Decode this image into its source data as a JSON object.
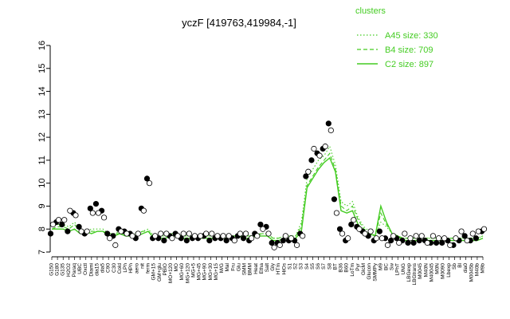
{
  "chart_data": {
    "type": "line",
    "title": "yczF [419763,419984,-1]",
    "ylim": [
      7,
      16
    ],
    "yticks": [
      7,
      8,
      9,
      10,
      11,
      12,
      13,
      14,
      15,
      16
    ],
    "x_labels": [
      "G150",
      "G180",
      "G135",
      "H2O2",
      "Paraq",
      "UBC",
      "Oxctl",
      "Diami",
      "dia15",
      "dia5",
      "C90",
      "C30",
      "Cold",
      "LPh",
      "HPh",
      "aero",
      "nit",
      "ferm",
      "GM+15",
      "GM+glu",
      "PBIO",
      "MO+120",
      "MO",
      "MG+60",
      "MG+120",
      "MG+5",
      "MG+45",
      "MG+90",
      "MG+30",
      "MG+15",
      "M/G",
      "Mal",
      "Fru",
      "Glu",
      "SMM",
      "BMM",
      "Heat",
      "Etha",
      "Salt",
      "Gly",
      "HTm",
      "HiOs",
      "S1",
      "S2",
      "S3",
      "S4",
      "S5",
      "S6",
      "S7",
      "S8",
      "BT",
      "B36",
      "B60",
      "LoTm",
      "Pyr",
      "GlcM",
      "Glucon",
      "SMMPy",
      "M9",
      "BC",
      "Sw",
      "LPhT",
      "UNG",
      "LBGexp",
      "LBGtrans",
      "M0045",
      "M40N",
      "M40045",
      "M0N",
      "M0090",
      "Lbexp",
      "Sb",
      "Bl",
      "dia0",
      "M0045b",
      "M40b",
      "M9b"
    ],
    "series": [
      {
        "name": "A45 size: 330",
        "style": "dotted",
        "values": [
          8.1,
          8.2,
          8.2,
          8.1,
          8.3,
          8.0,
          7.9,
          8.0,
          8.0,
          8.0,
          7.8,
          7.8,
          7.9,
          7.8,
          7.8,
          7.8,
          7.9,
          8.0,
          7.7,
          7.7,
          7.7,
          7.8,
          7.8,
          7.7,
          7.7,
          7.7,
          7.7,
          7.7,
          7.7,
          7.7,
          7.7,
          7.7,
          7.7,
          7.8,
          7.7,
          7.7,
          7.8,
          7.8,
          7.8,
          7.6,
          7.6,
          7.7,
          7.7,
          7.7,
          8.3,
          10.2,
          10.6,
          11.0,
          11.2,
          11.6,
          10.8,
          9.2,
          9.0,
          9.2,
          8.5,
          8.1,
          7.9,
          7.7,
          8.3,
          8.1,
          7.8,
          7.7,
          7.6,
          7.6,
          7.6,
          7.6,
          7.6,
          7.6,
          7.6,
          7.6,
          7.6,
          7.6,
          7.6,
          7.6,
          7.6,
          7.6,
          7.7
        ]
      },
      {
        "name": "B4 size: 709",
        "style": "dashed",
        "values": [
          8.0,
          8.1,
          8.1,
          8.0,
          8.2,
          7.9,
          7.9,
          7.9,
          7.9,
          7.9,
          7.8,
          7.8,
          7.8,
          7.8,
          7.8,
          7.8,
          7.9,
          7.9,
          7.7,
          7.7,
          7.7,
          7.8,
          7.8,
          7.7,
          7.7,
          7.7,
          7.7,
          7.7,
          7.7,
          7.7,
          7.7,
          7.7,
          7.7,
          7.7,
          7.7,
          7.7,
          7.7,
          7.8,
          7.8,
          7.6,
          7.6,
          7.7,
          7.7,
          7.7,
          8.1,
          9.9,
          10.3,
          10.7,
          11.0,
          11.3,
          10.6,
          9.0,
          8.8,
          9.0,
          8.4,
          8.0,
          7.9,
          7.7,
          8.7,
          8.2,
          7.8,
          7.7,
          7.6,
          7.6,
          7.6,
          7.6,
          7.6,
          7.6,
          7.6,
          7.6,
          7.6,
          7.6,
          7.6,
          7.6,
          7.6,
          7.6,
          7.7
        ]
      },
      {
        "name": "C2 size: 897",
        "style": "solid",
        "values": [
          8.0,
          8.0,
          8.0,
          7.9,
          8.0,
          7.8,
          7.9,
          7.8,
          7.9,
          7.9,
          7.7,
          7.7,
          7.8,
          7.7,
          7.7,
          7.7,
          7.8,
          7.9,
          7.6,
          7.6,
          7.6,
          7.7,
          7.7,
          7.6,
          7.6,
          7.6,
          7.6,
          7.6,
          7.6,
          7.6,
          7.6,
          7.6,
          7.7,
          7.7,
          7.6,
          7.6,
          7.7,
          7.7,
          7.7,
          7.5,
          7.5,
          7.6,
          7.6,
          7.6,
          7.9,
          9.8,
          10.2,
          10.6,
          10.9,
          11.1,
          10.5,
          8.8,
          8.7,
          8.8,
          8.2,
          7.9,
          7.8,
          7.7,
          9.0,
          8.3,
          7.8,
          7.7,
          7.5,
          7.5,
          7.5,
          7.5,
          7.5,
          7.5,
          7.5,
          7.5,
          7.5,
          7.5,
          7.5,
          7.5,
          7.5,
          7.5,
          7.6
        ]
      }
    ],
    "points_black": [
      7.8,
      8.3,
      8.2,
      7.9,
      8.7,
      8.1,
      7.8,
      8.9,
      9.1,
      8.8,
      7.8,
      7.7,
      8.0,
      7.9,
      7.8,
      7.6,
      8.9,
      10.2,
      7.6,
      7.6,
      7.5,
      7.7,
      7.8,
      7.6,
      7.5,
      7.6,
      7.6,
      7.7,
      7.5,
      7.6,
      7.6,
      7.5,
      7.6,
      7.7,
      7.6,
      7.5,
      7.8,
      8.2,
      8.1,
      7.4,
      7.4,
      7.5,
      7.5,
      7.5,
      7.8,
      10.3,
      11.0,
      11.3,
      11.5,
      12.6,
      9.3,
      8.0,
      7.5,
      8.2,
      8.1,
      7.9,
      7.7,
      7.5,
      7.9,
      7.6,
      7.5,
      7.6,
      7.5,
      7.4,
      7.4,
      7.5,
      7.5,
      7.4,
      7.4,
      7.4,
      7.5,
      7.3,
      7.5,
      7.7,
      7.5,
      7.6,
      7.9
    ],
    "points_white": [
      8.2,
      8.4,
      8.4,
      8.8,
      8.6,
      7.9,
      7.9,
      8.7,
      8.7,
      8.5,
      7.6,
      7.3,
      7.9,
      7.8,
      7.7,
      7.8,
      8.8,
      10.0,
      7.7,
      7.8,
      7.8,
      7.6,
      7.7,
      7.8,
      7.8,
      7.7,
      7.7,
      7.8,
      7.8,
      7.7,
      7.7,
      7.7,
      7.5,
      7.8,
      7.8,
      7.6,
      7.7,
      8.0,
      7.8,
      7.2,
      7.3,
      7.7,
      7.6,
      7.3,
      7.7,
      10.5,
      11.5,
      11.2,
      11.6,
      12.3,
      8.7,
      7.8,
      7.6,
      8.4,
      8.0,
      7.8,
      7.9,
      7.6,
      7.6,
      7.3,
      7.7,
      7.4,
      7.8,
      7.6,
      7.7,
      7.7,
      7.4,
      7.7,
      7.6,
      7.6,
      7.3,
      7.6,
      7.9,
      7.5,
      7.8,
      7.9,
      8.0
    ],
    "legend_title": "clusters",
    "legend_position": "top-right",
    "colors": {
      "series": "#44cc22",
      "points": "#000000",
      "axis": "#000000"
    }
  }
}
